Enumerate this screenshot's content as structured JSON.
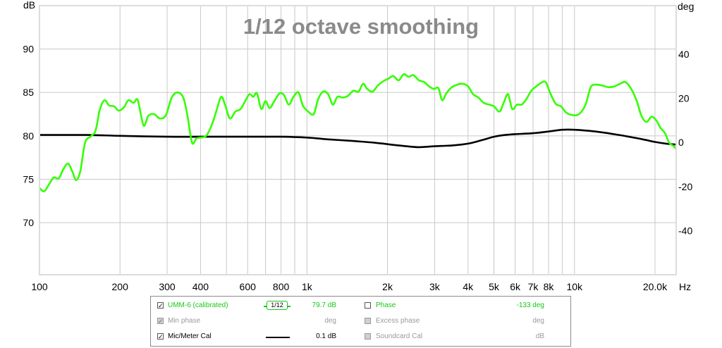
{
  "chart_data": {
    "type": "line",
    "title": "1/12 octave smoothing",
    "x_unit": "Hz",
    "y_left_unit": "dB",
    "y_right_unit": "deg",
    "xlim": [
      100,
      24000
    ],
    "xscale": "log",
    "ylim": [
      64,
      95
    ],
    "y_right_lim": [
      -60,
      62
    ],
    "grid": true,
    "x_ticks": [
      {
        "v": 100,
        "label": "100"
      },
      {
        "v": 200,
        "label": "200"
      },
      {
        "v": 300,
        "label": "300"
      },
      {
        "v": 400,
        "label": "400"
      },
      {
        "v": 600,
        "label": "600"
      },
      {
        "v": 800,
        "label": "800"
      },
      {
        "v": 1000,
        "label": "1k"
      },
      {
        "v": 2000,
        "label": "2k"
      },
      {
        "v": 3000,
        "label": "3k"
      },
      {
        "v": 4000,
        "label": "4k"
      },
      {
        "v": 5000,
        "label": "5k"
      },
      {
        "v": 6000,
        "label": "6k"
      },
      {
        "v": 7000,
        "label": "7k"
      },
      {
        "v": 8000,
        "label": "8k"
      },
      {
        "v": 10000,
        "label": "10k"
      },
      {
        "v": 20000,
        "label": "20.0k"
      }
    ],
    "x_grid_minor": [
      500,
      700,
      900,
      5000,
      7000,
      9000
    ],
    "y_ticks_left": [
      {
        "v": 70,
        "label": "70"
      },
      {
        "v": 75,
        "label": "75"
      },
      {
        "v": 80,
        "label": "80"
      },
      {
        "v": 85,
        "label": "85"
      },
      {
        "v": 90,
        "label": "90"
      }
    ],
    "y_ticks_right": [
      {
        "v": -40,
        "label": "-40"
      },
      {
        "v": -20,
        "label": "-20"
      },
      {
        "v": 0,
        "label": "0"
      },
      {
        "v": 20,
        "label": "20"
      },
      {
        "v": 40,
        "label": "40"
      }
    ],
    "series": [
      {
        "name": "UMM-6 (calibrated)",
        "color": "#33ff00",
        "points": [
          [
            100,
            74.0
          ],
          [
            104,
            73.6
          ],
          [
            108,
            74.3
          ],
          [
            113,
            75.2
          ],
          [
            118,
            75.1
          ],
          [
            123,
            76.2
          ],
          [
            128,
            76.8
          ],
          [
            133,
            75.8
          ],
          [
            137,
            74.9
          ],
          [
            142,
            75.9
          ],
          [
            148,
            79.2
          ],
          [
            155,
            79.9
          ],
          [
            162,
            80.6
          ],
          [
            168,
            83.0
          ],
          [
            175,
            84.1
          ],
          [
            182,
            83.5
          ],
          [
            190,
            83.4
          ],
          [
            198,
            82.9
          ],
          [
            207,
            83.3
          ],
          [
            215,
            84.1
          ],
          [
            225,
            83.8
          ],
          [
            233,
            84.1
          ],
          [
            245,
            81.2
          ],
          [
            255,
            82.3
          ],
          [
            268,
            82.5
          ],
          [
            282,
            82.0
          ],
          [
            297,
            82.4
          ],
          [
            312,
            84.4
          ],
          [
            328,
            85.0
          ],
          [
            345,
            84.4
          ],
          [
            358,
            82.2
          ],
          [
            372,
            79.2
          ],
          [
            386,
            79.7
          ],
          [
            400,
            79.8
          ],
          [
            420,
            80.0
          ],
          [
            440,
            81.2
          ],
          [
            460,
            83.0
          ],
          [
            478,
            84.5
          ],
          [
            495,
            83.5
          ],
          [
            515,
            82.0
          ],
          [
            540,
            82.8
          ],
          [
            565,
            83.1
          ],
          [
            590,
            84.1
          ],
          [
            610,
            84.8
          ],
          [
            630,
            84.5
          ],
          [
            650,
            84.9
          ],
          [
            675,
            83.1
          ],
          [
            700,
            84.0
          ],
          [
            725,
            83.2
          ],
          [
            755,
            84.0
          ],
          [
            790,
            84.9
          ],
          [
            820,
            84.7
          ],
          [
            855,
            83.6
          ],
          [
            890,
            84.5
          ],
          [
            930,
            85.0
          ],
          [
            965,
            83.5
          ],
          [
            1010,
            82.8
          ],
          [
            1060,
            82.5
          ],
          [
            1100,
            84.2
          ],
          [
            1150,
            85.1
          ],
          [
            1200,
            84.8
          ],
          [
            1250,
            83.6
          ],
          [
            1300,
            84.5
          ],
          [
            1360,
            84.4
          ],
          [
            1420,
            84.6
          ],
          [
            1490,
            85.2
          ],
          [
            1560,
            85.1
          ],
          [
            1620,
            86.0
          ],
          [
            1680,
            85.4
          ],
          [
            1760,
            85.1
          ],
          [
            1840,
            85.8
          ],
          [
            1930,
            86.3
          ],
          [
            2020,
            86.6
          ],
          [
            2100,
            86.9
          ],
          [
            2200,
            86.4
          ],
          [
            2300,
            87.1
          ],
          [
            2400,
            86.8
          ],
          [
            2500,
            87.0
          ],
          [
            2620,
            86.4
          ],
          [
            2740,
            86.2
          ],
          [
            2860,
            85.7
          ],
          [
            2980,
            85.4
          ],
          [
            3100,
            85.5
          ],
          [
            3200,
            84.1
          ],
          [
            3320,
            84.9
          ],
          [
            3480,
            85.6
          ],
          [
            3650,
            85.9
          ],
          [
            3820,
            86.0
          ],
          [
            4000,
            85.7
          ],
          [
            4180,
            84.8
          ],
          [
            4380,
            84.4
          ],
          [
            4580,
            83.8
          ],
          [
            4800,
            83.6
          ],
          [
            5000,
            83.4
          ],
          [
            5250,
            82.8
          ],
          [
            5450,
            83.9
          ],
          [
            5650,
            84.8
          ],
          [
            5850,
            83.1
          ],
          [
            6100,
            83.6
          ],
          [
            6350,
            83.6
          ],
          [
            6600,
            84.2
          ],
          [
            6900,
            85.2
          ],
          [
            7200,
            85.7
          ],
          [
            7500,
            86.1
          ],
          [
            7800,
            86.2
          ],
          [
            8100,
            85.0
          ],
          [
            8500,
            83.7
          ],
          [
            8900,
            83.4
          ],
          [
            9300,
            82.7
          ],
          [
            9800,
            82.4
          ],
          [
            10400,
            82.5
          ],
          [
            11000,
            83.6
          ],
          [
            11500,
            85.6
          ],
          [
            12000,
            85.9
          ],
          [
            12700,
            85.8
          ],
          [
            13400,
            85.6
          ],
          [
            14100,
            85.7
          ],
          [
            14800,
            86.0
          ],
          [
            15500,
            86.2
          ],
          [
            16300,
            85.4
          ],
          [
            17100,
            84.0
          ],
          [
            17800,
            82.3
          ],
          [
            18600,
            81.6
          ],
          [
            19400,
            82.2
          ],
          [
            20200,
            81.8
          ],
          [
            21000,
            80.9
          ],
          [
            21800,
            80.3
          ],
          [
            22600,
            79.2
          ],
          [
            23300,
            78.9
          ],
          [
            24000,
            78.5
          ]
        ]
      },
      {
        "name": "Mic/Meter Cal",
        "color": "#000000",
        "points": [
          [
            100,
            80.1
          ],
          [
            150,
            80.1
          ],
          [
            200,
            80.0
          ],
          [
            300,
            79.9
          ],
          [
            400,
            79.9
          ],
          [
            600,
            79.9
          ],
          [
            800,
            79.9
          ],
          [
            1000,
            79.8
          ],
          [
            1200,
            79.6
          ],
          [
            1500,
            79.4
          ],
          [
            1800,
            79.2
          ],
          [
            2200,
            78.9
          ],
          [
            2600,
            78.7
          ],
          [
            3000,
            78.8
          ],
          [
            3500,
            78.9
          ],
          [
            4000,
            79.1
          ],
          [
            4500,
            79.5
          ],
          [
            5000,
            79.9
          ],
          [
            5500,
            80.1
          ],
          [
            6000,
            80.2
          ],
          [
            7000,
            80.3
          ],
          [
            8000,
            80.5
          ],
          [
            9000,
            80.7
          ],
          [
            10000,
            80.7
          ],
          [
            12000,
            80.5
          ],
          [
            14000,
            80.2
          ],
          [
            16000,
            79.9
          ],
          [
            18000,
            79.6
          ],
          [
            20000,
            79.3
          ],
          [
            22000,
            79.1
          ],
          [
            24000,
            79.0
          ]
        ]
      }
    ]
  },
  "legend": {
    "rows": [
      {
        "left": {
          "label": "UMM-6 (calibrated)",
          "checked": true,
          "enabled": true,
          "smoothing": "1/12",
          "value": "79.7 dB"
        },
        "right": {
          "label": "Phase",
          "checked": false,
          "enabled": true,
          "value": "-133 deg"
        }
      },
      {
        "left": {
          "label": "Min phase",
          "checked": true,
          "enabled": false,
          "value": "deg"
        },
        "right": {
          "label": "Excess phase",
          "checked": false,
          "enabled": false,
          "value": "deg"
        }
      },
      {
        "left": {
          "label": "Mic/Meter Cal",
          "checked": true,
          "enabled": true,
          "value": "0.1 dB"
        },
        "right": {
          "label": "Soundcard Cal",
          "checked": false,
          "enabled": false,
          "value": "dB"
        }
      }
    ],
    "check_mark": "✓"
  },
  "colors": {
    "plot_bg": "#ffffff",
    "grid": "#c8c8c8",
    "frame_fill": "#dcdcdc",
    "green": "#33ff00",
    "green_text": "#17c817"
  }
}
